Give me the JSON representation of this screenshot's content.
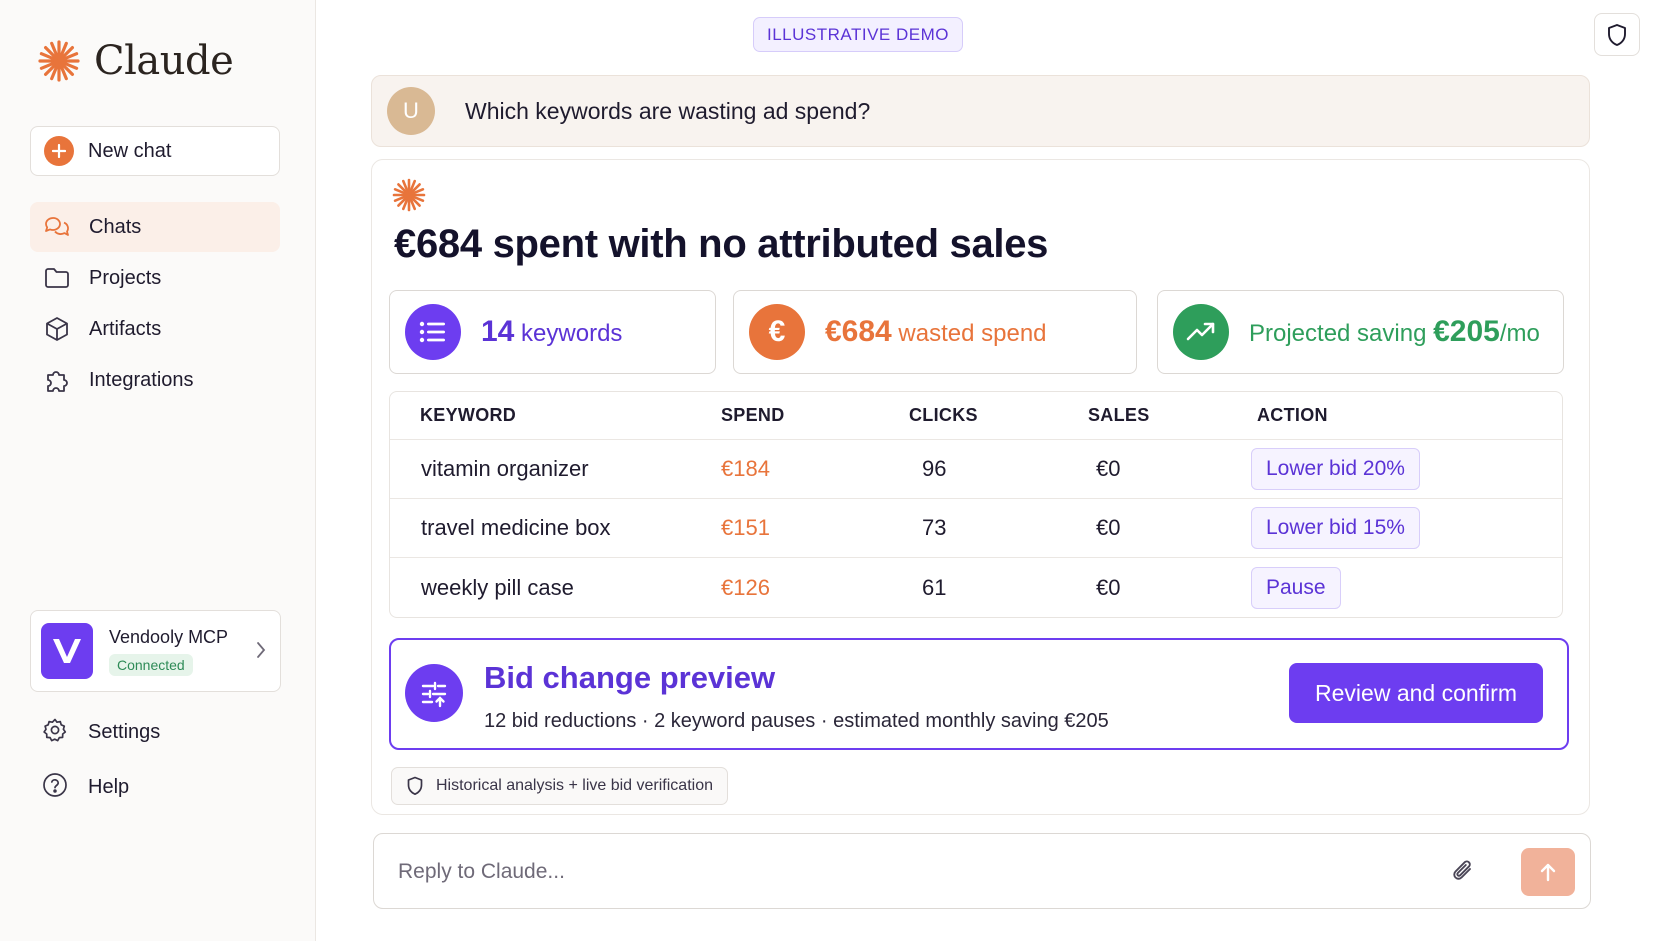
{
  "app": {
    "name": "Claude",
    "demo_badge": "ILLUSTRATIVE DEMO"
  },
  "sidebar": {
    "new_chat": "New chat",
    "items": [
      {
        "label": "Chats",
        "icon": "chat-bubbles-icon",
        "active": true
      },
      {
        "label": "Projects",
        "icon": "folder-icon"
      },
      {
        "label": "Artifacts",
        "icon": "cube-icon"
      },
      {
        "label": "Integrations",
        "icon": "puzzle-icon"
      }
    ],
    "mcp": {
      "name": "Vendooly MCP",
      "status": "Connected"
    },
    "bottom": [
      {
        "label": "Settings",
        "icon": "gear-icon"
      },
      {
        "label": "Help",
        "icon": "help-circle-icon"
      }
    ]
  },
  "conversation": {
    "user_initial": "U",
    "user_message": "Which keywords are wasting ad spend?",
    "answer": {
      "title": "€684 spent with no attributed sales",
      "stats": [
        {
          "value": "14",
          "label": "keywords",
          "color": "#5b33d6"
        },
        {
          "value": "€684",
          "label": "wasted spend",
          "color": "#e8743b"
        },
        {
          "label": "Projected saving",
          "value": "€205",
          "suffix": "/mo",
          "color": "#2e9e5b"
        }
      ],
      "table": {
        "headers": [
          "KEYWORD",
          "SPEND",
          "CLICKS",
          "SALES",
          "ACTION"
        ],
        "rows": [
          {
            "keyword": "vitamin organizer",
            "spend": "€184",
            "clicks": "96",
            "sales": "€0",
            "action": "Lower bid 20%"
          },
          {
            "keyword": "travel medicine box",
            "spend": "€151",
            "clicks": "73",
            "sales": "€0",
            "action": "Lower bid 15%"
          },
          {
            "keyword": "weekly pill case",
            "spend": "€126",
            "clicks": "61",
            "sales": "€0",
            "action": "Pause"
          }
        ]
      },
      "preview": {
        "title": "Bid change preview",
        "subtitle": "12 bid reductions · 2 keyword pauses · estimated monthly saving €205",
        "button": "Review and confirm"
      },
      "footnote": "Historical analysis + live bid verification"
    }
  },
  "composer": {
    "placeholder": "Reply to Claude..."
  },
  "colors": {
    "accent": "#e8743b",
    "brand_purple": "#6d3df0",
    "success": "#2e9e5b"
  }
}
